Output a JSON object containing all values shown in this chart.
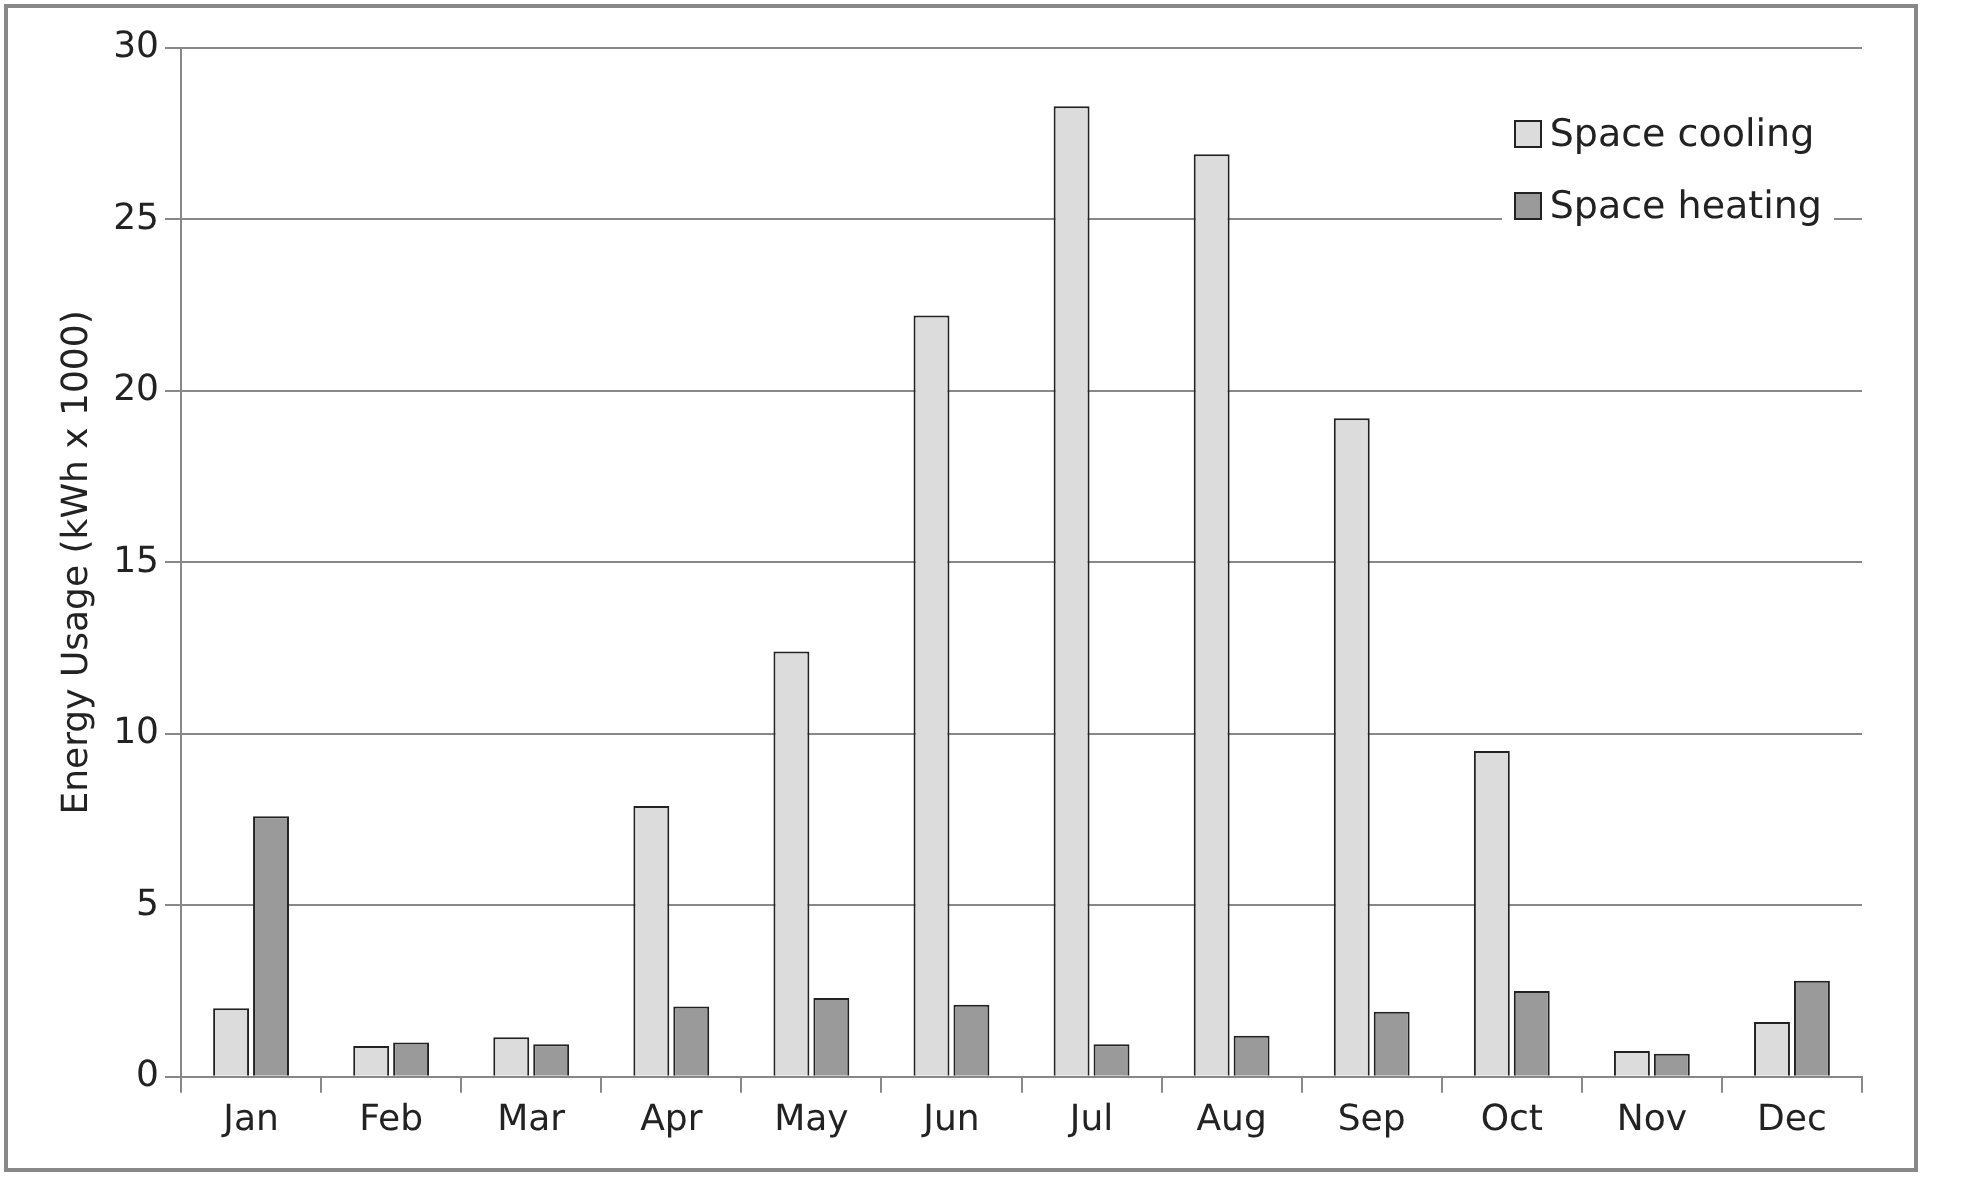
{
  "chart_data": {
    "type": "bar",
    "ylabel": "Energy Usage (kWh x 1000)",
    "categories": [
      "Jan",
      "Feb",
      "Mar",
      "Apr",
      "May",
      "Jun",
      "Jul",
      "Aug",
      "Sep",
      "Oct",
      "Nov",
      "Dec"
    ],
    "series": [
      {
        "name": "Space cooling",
        "color": "#dcdcdc",
        "values": [
          2.0,
          0.9,
          1.15,
          7.9,
          12.4,
          22.2,
          28.3,
          26.9,
          19.2,
          9.5,
          0.75,
          1.6
        ]
      },
      {
        "name": "Space heating",
        "color": "#9a9a9a",
        "values": [
          7.6,
          1.0,
          0.95,
          2.05,
          2.3,
          2.1,
          0.95,
          1.2,
          1.9,
          2.5,
          0.67,
          2.8
        ]
      }
    ],
    "ylim": [
      0,
      30
    ],
    "yticks": [
      0,
      5,
      10,
      15,
      20,
      25,
      30
    ],
    "grid": "y",
    "legend": "top right"
  }
}
